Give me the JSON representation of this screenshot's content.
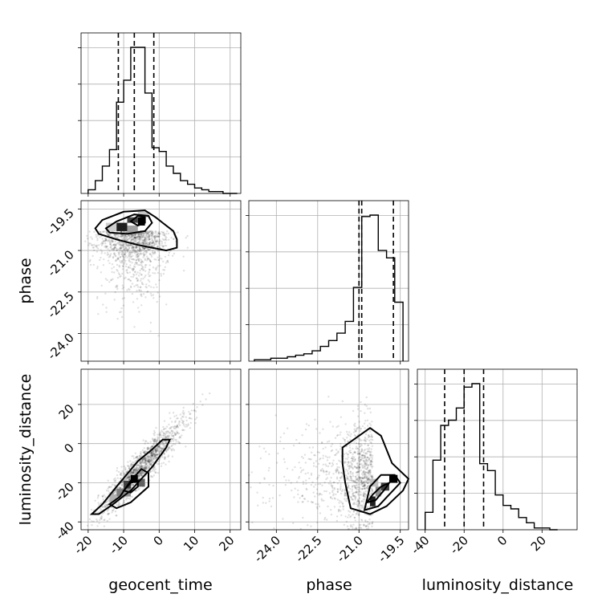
{
  "chart_data": {
    "type": "corner",
    "parameters": [
      "geocent_time",
      "phase",
      "luminosity_distance"
    ],
    "axis_labels": {
      "geocent_time": "geocent_time",
      "phase": "phase",
      "luminosity_distance": "luminosity_distance"
    },
    "ranges": {
      "geocent_time": [
        -22,
        23
      ],
      "phase": [
        -25.0,
        -19.2
      ],
      "luminosity_distance": [
        -44,
        38
      ]
    },
    "ticks": {
      "geocent_time": [
        "-20",
        "-10",
        "0",
        "10",
        "20"
      ],
      "phase": [
        "-24.0",
        "-22.5",
        "-21.0",
        "-19.5"
      ],
      "luminosity_distance": [
        "-40",
        "-20",
        "0",
        "20"
      ]
    },
    "quantiles": {
      "geocent_time": [
        -11.5,
        -7.0,
        -1.5
      ],
      "phase": [
        -21.0,
        -20.9,
        -19.75
      ],
      "luminosity_distance": [
        -30.0,
        -20.0,
        -10.0
      ]
    },
    "histograms": {
      "geocent_time": {
        "bin_edges": [
          -20,
          -18,
          -16,
          -14,
          -12,
          -10,
          -8,
          -6,
          -4,
          -2,
          0,
          2,
          4,
          6,
          8,
          10,
          12,
          14,
          16,
          18,
          20,
          22
        ],
        "counts": [
          2,
          7,
          15,
          24,
          50,
          62,
          80,
          80,
          55,
          25,
          23,
          15,
          11,
          7,
          5,
          3,
          2,
          1,
          1,
          0,
          0
        ]
      },
      "phase": {
        "bin_edges": [
          -24.8,
          -24.5,
          -24.2,
          -23.9,
          -23.6,
          -23.3,
          -23.0,
          -22.7,
          -22.4,
          -22.1,
          -21.8,
          -21.5,
          -21.2,
          -20.9,
          -20.6,
          -20.3,
          -20.0,
          -19.7,
          -19.4
        ],
        "counts": [
          1,
          1,
          2,
          2,
          3,
          4,
          5,
          7,
          10,
          14,
          19,
          27,
          50,
          98,
          99,
          75,
          70,
          40
        ]
      },
      "luminosity_distance": {
        "bin_edges": [
          -40,
          -36,
          -32,
          -28,
          -24,
          -20,
          -16,
          -12,
          -8,
          -4,
          0,
          4,
          8,
          12,
          16,
          20,
          24,
          28
        ],
        "counts": [
          10,
          40,
          60,
          63,
          70,
          82,
          84,
          38,
          34,
          20,
          14,
          12,
          7,
          4,
          1,
          1,
          0
        ]
      }
    },
    "scatter": {
      "samples": 1800,
      "geocent_time_vs_phase": {
        "center": [
          -7,
          -20.3
        ],
        "spread": [
          5,
          0.9
        ]
      },
      "geocent_time_vs_luminosity_distance": {
        "center": [
          -5,
          -12
        ],
        "spread": [
          6,
          12
        ],
        "correlation": 0.93
      },
      "phase_vs_luminosity_distance": {
        "center": [
          -20.5,
          -18
        ],
        "spread": [
          1,
          14
        ]
      }
    },
    "colors": {
      "line": "#000000",
      "grid": "#b0b0b0",
      "points": "#000000"
    }
  }
}
